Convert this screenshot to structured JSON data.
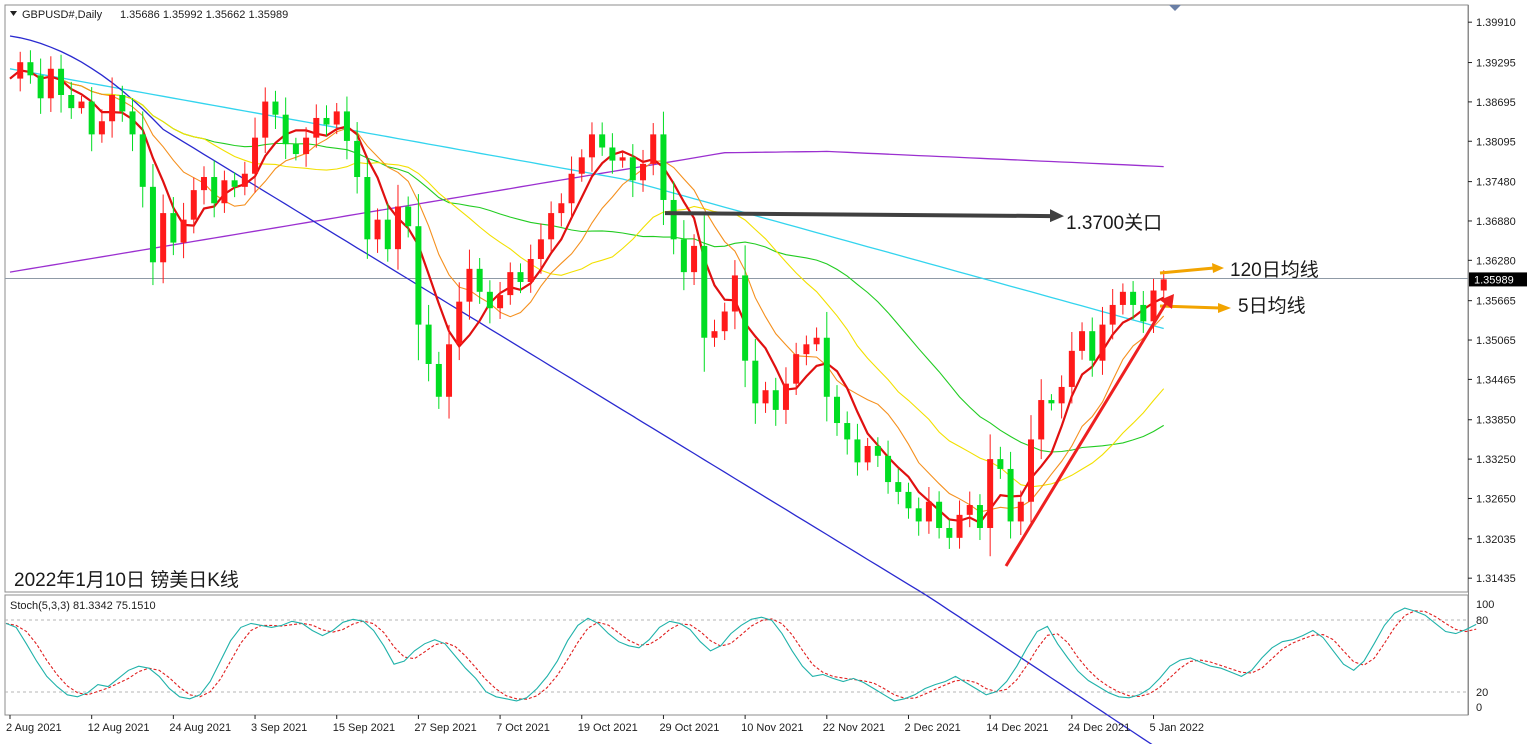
{
  "header": {
    "symbol": "GBPUSD#,Daily",
    "ohlc": "1.35686 1.35992 1.35662 1.35989"
  },
  "caption": "2022年1月10日 镑美日K线",
  "annotations": {
    "level_text": "1.3700关口",
    "ma120_text": "120日均线",
    "ma5_text": "5日均线"
  },
  "stoch": {
    "header": "Stoch(5,3,3) 81.3342 75.1510",
    "axis_labels": [
      "100",
      "80",
      "20",
      "0"
    ],
    "main_values": [
      82,
      78,
      62,
      45,
      30,
      20,
      12,
      10,
      14,
      22,
      20,
      28,
      36,
      40,
      38,
      30,
      18,
      10,
      8,
      12,
      25,
      45,
      65,
      78,
      82,
      80,
      78,
      80,
      84,
      82,
      75,
      70,
      75,
      83,
      86,
      84,
      75,
      60,
      42,
      45,
      55,
      62,
      66,
      62,
      50,
      38,
      28,
      15,
      10,
      8,
      6,
      9,
      18,
      30,
      45,
      65,
      80,
      87,
      82,
      72,
      64,
      60,
      58,
      66,
      78,
      84,
      82,
      76,
      64,
      55,
      60,
      72,
      80,
      86,
      88,
      85,
      72,
      55,
      40,
      30,
      32,
      28,
      25,
      28,
      24,
      18,
      12,
      6,
      8,
      12,
      18,
      22,
      25,
      30,
      24,
      18,
      12,
      15,
      25,
      40,
      58,
      74,
      79,
      62,
      48,
      35,
      26,
      20,
      14,
      10,
      9,
      12,
      18,
      28,
      40,
      46,
      48,
      44,
      40,
      38,
      34,
      30,
      36,
      48,
      58,
      64,
      66,
      70,
      75,
      68,
      55,
      42,
      36,
      45,
      62,
      80,
      92,
      97,
      94,
      90,
      82,
      74,
      72,
      76,
      81
    ]
  },
  "chart_data": {
    "type": "candlestick",
    "symbol": "GBPUSD#",
    "timeframe": "Daily",
    "price_axis_ticks": [
      "1.39910",
      "1.39295",
      "1.38695",
      "1.38095",
      "1.37480",
      "1.36880",
      "1.36280",
      "1.35989",
      "1.35665",
      "1.35065",
      "1.34465",
      "1.33850",
      "1.33250",
      "1.32650",
      "1.32035",
      "1.31435"
    ],
    "current_price": "1.35989",
    "ylim": [
      1.3127,
      1.4005
    ],
    "x_tick_labels": [
      "2 Aug 2021",
      "12 Aug 2021",
      "24 Aug 2021",
      "3 Sep 2021",
      "15 Sep 2021",
      "27 Sep 2021",
      "7 Oct 2021",
      "19 Oct 2021",
      "29 Oct 2021",
      "10 Nov 2021",
      "22 Nov 2021",
      "2 Dec 2021",
      "14 Dec 2021",
      "24 Dec 2021",
      "5 Jan 2022"
    ],
    "x_tick_index": [
      0,
      8,
      16,
      24,
      32,
      40,
      48,
      56,
      64,
      72,
      80,
      88,
      96,
      104,
      112
    ],
    "closes": [
      1.3905,
      1.393,
      1.391,
      1.3875,
      1.392,
      1.388,
      1.386,
      1.387,
      1.382,
      1.384,
      1.388,
      1.3855,
      1.382,
      1.374,
      1.3625,
      1.37,
      1.3655,
      1.369,
      1.3735,
      1.3755,
      1.3715,
      1.375,
      1.374,
      1.376,
      1.3815,
      1.387,
      1.385,
      1.3805,
      1.379,
      1.3815,
      1.3845,
      1.3835,
      1.3855,
      1.381,
      1.3755,
      1.366,
      1.369,
      1.3645,
      1.371,
      1.368,
      1.353,
      1.347,
      1.342,
      1.35,
      1.3565,
      1.3615,
      1.358,
      1.3555,
      1.3575,
      1.361,
      1.3595,
      1.363,
      1.366,
      1.37,
      1.3715,
      1.376,
      1.3785,
      1.382,
      1.38,
      1.378,
      1.3785,
      1.375,
      1.3775,
      1.382,
      1.372,
      1.366,
      1.361,
      1.365,
      1.351,
      1.352,
      1.355,
      1.3605,
      1.3475,
      1.341,
      1.343,
      1.34,
      1.344,
      1.3485,
      1.35,
      1.351,
      1.342,
      1.338,
      1.3355,
      1.332,
      1.3345,
      1.333,
      1.329,
      1.3275,
      1.325,
      1.323,
      1.326,
      1.322,
      1.3205,
      1.324,
      1.3255,
      1.322,
      1.3325,
      1.331,
      1.323,
      1.326,
      1.3355,
      1.3415,
      1.341,
      1.3435,
      1.349,
      1.352,
      1.3475,
      1.353,
      1.356,
      1.358,
      1.356,
      1.3535,
      1.3582,
      1.3599
    ]
  }
}
